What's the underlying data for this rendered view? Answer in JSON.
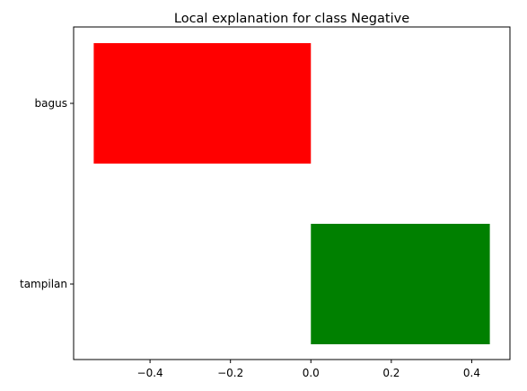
{
  "chart_data": {
    "type": "bar",
    "orientation": "horizontal",
    "title": "Local explanation for class Negative",
    "xlabel": "",
    "ylabel": "",
    "categories": [
      "bagus",
      "tampilan"
    ],
    "values": [
      -0.54,
      0.445
    ],
    "colors": [
      "#ff0000",
      "#008000"
    ],
    "xlim": [
      -0.59,
      0.495
    ],
    "xticks": [
      -0.4,
      -0.2,
      0.0,
      0.2,
      0.4
    ],
    "xtick_labels": [
      "−0.4",
      "−0.2",
      "0.0",
      "0.2",
      "0.4"
    ],
    "grid": false,
    "legend": "none"
  }
}
